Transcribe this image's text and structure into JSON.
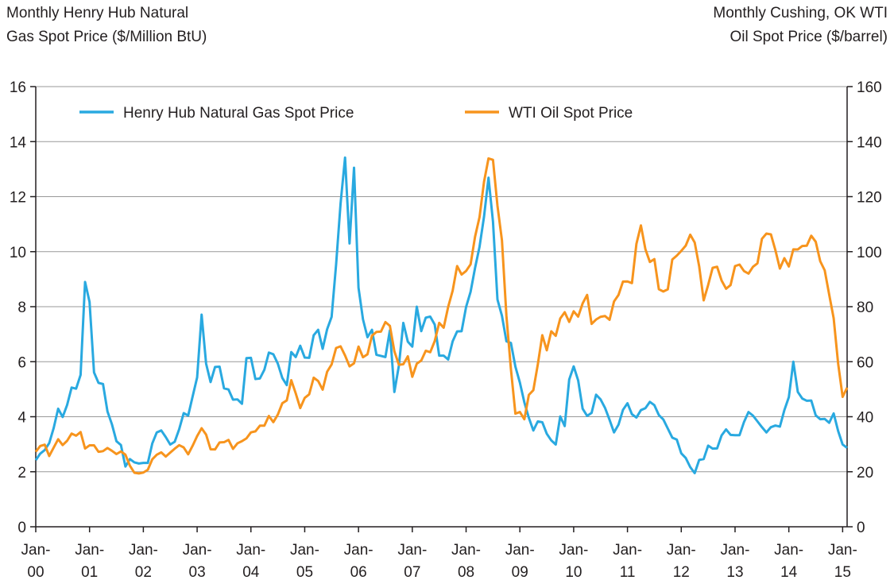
{
  "chart_data": {
    "type": "line",
    "y_label": [
      "Monthly Henry Hub Natural",
      "Gas Spot Price ($/Million BtU)"
    ],
    "y2_label": [
      "Monthly Cushing, OK WTI",
      "Oil Spot Price ($/barrel)"
    ],
    "categories": [
      "Jan-00",
      null,
      null,
      null,
      null,
      null,
      null,
      null,
      null,
      null,
      null,
      null,
      "Jan-01",
      null,
      null,
      null,
      null,
      null,
      null,
      null,
      null,
      null,
      null,
      null,
      "Jan-02",
      null,
      null,
      null,
      null,
      null,
      null,
      null,
      null,
      null,
      null,
      null,
      "Jan-03",
      null,
      null,
      null,
      null,
      null,
      null,
      null,
      null,
      null,
      null,
      null,
      "Jan-04",
      null,
      null,
      null,
      null,
      null,
      null,
      null,
      null,
      null,
      null,
      null,
      "Jan-05",
      null,
      null,
      null,
      null,
      null,
      null,
      null,
      null,
      null,
      null,
      null,
      "Jan-06",
      null,
      null,
      null,
      null,
      null,
      null,
      null,
      null,
      null,
      null,
      null,
      "Jan-07",
      null,
      null,
      null,
      null,
      null,
      null,
      null,
      null,
      null,
      null,
      null,
      "Jan-08",
      null,
      null,
      null,
      null,
      null,
      null,
      null,
      null,
      null,
      null,
      null,
      "Jan-09",
      null,
      null,
      null,
      null,
      null,
      null,
      null,
      null,
      null,
      null,
      null,
      "Jan-10",
      null,
      null,
      null,
      null,
      null,
      null,
      null,
      null,
      null,
      null,
      null,
      "Jan-11",
      null,
      null,
      null,
      null,
      null,
      null,
      null,
      null,
      null,
      null,
      null,
      "Jan-12",
      null,
      null,
      null,
      null,
      null,
      null,
      null,
      null,
      null,
      null,
      null,
      "Jan-13",
      null,
      null,
      null,
      null,
      null,
      null,
      null,
      null,
      null,
      null,
      null,
      "Jan-14",
      null,
      null,
      null,
      null,
      null,
      null,
      null,
      null,
      null,
      null,
      null,
      "Jan-15",
      null
    ],
    "series": [
      {
        "name": "Henry Hub Natural Gas Spot Price",
        "color": "#29a9e0",
        "axis": "y",
        "values": [
          2.42,
          2.66,
          2.79,
          3.04,
          3.59,
          4.29,
          3.99,
          4.43,
          5.06,
          5.02,
          5.52,
          8.9,
          8.17,
          5.61,
          5.23,
          5.19,
          4.19,
          3.72,
          3.11,
          2.97,
          2.19,
          2.46,
          2.34,
          2.3,
          2.32,
          2.32,
          3.03,
          3.43,
          3.5,
          3.26,
          2.99,
          3.09,
          3.55,
          4.13,
          4.04,
          4.74,
          5.43,
          7.71,
          5.93,
          5.26,
          5.81,
          5.82,
          5.03,
          4.99,
          4.62,
          4.63,
          4.47,
          6.13,
          6.14,
          5.37,
          5.39,
          5.71,
          6.33,
          6.27,
          5.93,
          5.41,
          5.15,
          6.35,
          6.17,
          6.58,
          6.15,
          6.14,
          6.96,
          7.16,
          6.47,
          7.18,
          7.63,
          9.53,
          11.75,
          13.42,
          10.3,
          13.05,
          8.69,
          7.54,
          6.89,
          7.16,
          6.25,
          6.21,
          6.17,
          7.14,
          4.9,
          5.85,
          7.41,
          6.73,
          6.55,
          8.0,
          7.11,
          7.6,
          7.64,
          7.35,
          6.22,
          6.22,
          6.08,
          6.74,
          7.1,
          7.11,
          7.99,
          8.54,
          9.41,
          10.18,
          11.27,
          12.69,
          11.09,
          8.26,
          7.67,
          6.74,
          6.68,
          5.82,
          5.24,
          4.52,
          3.96,
          3.5,
          3.83,
          3.8,
          3.38,
          3.14,
          2.99,
          4.01,
          3.66,
          5.35,
          5.83,
          5.32,
          4.29,
          4.03,
          4.14,
          4.8,
          4.63,
          4.32,
          3.89,
          3.43,
          3.71,
          4.25,
          4.49,
          4.09,
          3.97,
          4.24,
          4.31,
          4.54,
          4.42,
          4.06,
          3.9,
          3.57,
          3.24,
          3.17,
          2.67,
          2.5,
          2.17,
          1.95,
          2.43,
          2.46,
          2.95,
          2.84,
          2.85,
          3.32,
          3.54,
          3.34,
          3.33,
          3.33,
          3.81,
          4.17,
          4.04,
          3.83,
          3.62,
          3.43,
          3.62,
          3.68,
          3.64,
          4.24,
          4.71,
          6.0,
          4.9,
          4.66,
          4.58,
          4.59,
          4.05,
          3.91,
          3.92,
          3.78,
          4.12,
          3.48,
          2.99,
          2.87
        ]
      },
      {
        "name": "WTI Oil Spot Price",
        "color": "#f7941d",
        "axis": "y2",
        "values": [
          27.26,
          29.37,
          29.84,
          25.72,
          28.79,
          31.82,
          29.7,
          31.26,
          33.88,
          33.11,
          34.42,
          28.44,
          29.59,
          29.61,
          27.24,
          27.49,
          28.63,
          27.6,
          26.43,
          27.37,
          26.2,
          22.17,
          19.64,
          19.39,
          19.72,
          20.72,
          24.53,
          26.18,
          27.04,
          25.52,
          26.97,
          28.39,
          29.66,
          28.84,
          26.35,
          29.46,
          32.95,
          35.83,
          33.51,
          28.17,
          28.11,
          30.66,
          30.75,
          31.57,
          28.31,
          30.34,
          31.11,
          32.13,
          34.31,
          34.69,
          36.74,
          36.75,
          40.28,
          38.03,
          40.78,
          44.9,
          45.94,
          53.28,
          48.47,
          43.15,
          46.84,
          48.15,
          54.19,
          52.98,
          49.83,
          56.35,
          59.0,
          64.99,
          65.59,
          62.26,
          58.32,
          59.41,
          65.49,
          61.63,
          62.69,
          69.44,
          70.84,
          70.95,
          74.41,
          73.04,
          63.8,
          58.89,
          59.08,
          61.96,
          54.51,
          59.28,
          60.44,
          63.98,
          63.46,
          67.49,
          74.12,
          72.36,
          79.92,
          85.8,
          94.77,
          91.69,
          92.97,
          95.39,
          105.45,
          112.58,
          125.4,
          133.88,
          133.37,
          116.67,
          104.11,
          76.61,
          57.31,
          41.12,
          41.71,
          39.09,
          47.94,
          49.65,
          59.03,
          69.64,
          64.15,
          71.05,
          69.41,
          75.72,
          77.99,
          74.47,
          78.33,
          76.39,
          81.2,
          84.29,
          73.74,
          75.34,
          76.32,
          76.6,
          75.24,
          81.89,
          84.25,
          89.15,
          89.17,
          88.58,
          102.86,
          109.53,
          100.9,
          96.26,
          97.3,
          86.33,
          85.52,
          86.32,
          97.16,
          98.56,
          100.27,
          102.2,
          106.16,
          103.32,
          94.66,
          82.3,
          87.9,
          94.13,
          94.51,
          89.49,
          86.53,
          87.86,
          94.76,
          95.31,
          92.94,
          92.02,
          94.51,
          95.77,
          104.67,
          106.57,
          106.29,
          100.54,
          93.86,
          97.63,
          94.62,
          100.82,
          100.8,
          102.07,
          102.18,
          105.79,
          103.59,
          96.54,
          93.21,
          84.4,
          75.79,
          59.29,
          47.22,
          50.58
        ]
      }
    ],
    "ylim": [
      0,
      16
    ],
    "yticks": [
      0,
      2,
      4,
      6,
      8,
      10,
      12,
      14,
      16
    ],
    "y2lim": [
      0,
      160
    ],
    "y2ticks": [
      0,
      20,
      40,
      60,
      80,
      100,
      120,
      140,
      160
    ],
    "grid": true,
    "legend": "top"
  }
}
